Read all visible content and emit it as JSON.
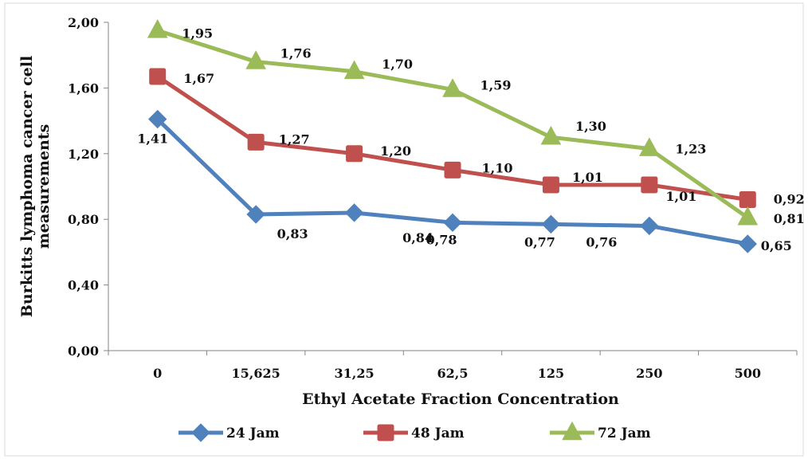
{
  "chart_data": {
    "type": "line",
    "xlabel": "Ethyl Acetate Fraction Concentration",
    "ylabel": [
      "Burkitts lymphoma cancer cell",
      "measurements"
    ],
    "categories": [
      "0",
      "15,625",
      "31,25",
      "62,5",
      "125",
      "250",
      "500"
    ],
    "ylim": [
      0,
      2
    ],
    "yticks": [
      0,
      0.4,
      0.8,
      1.2,
      1.6,
      2.0
    ],
    "ytick_labels": [
      "0,00",
      "0,40",
      "0,80",
      "1,20",
      "1,60",
      "2,00"
    ],
    "grid": false,
    "legend": "bottom",
    "series": [
      {
        "name": "24 Jam",
        "color": "#4f81bd",
        "marker": "diamond",
        "values": [
          1.41,
          0.83,
          0.84,
          0.78,
          0.77,
          0.76,
          0.65
        ],
        "labels": [
          "1,41",
          "0,83",
          "0,84",
          "0,78",
          "0,77",
          "0,76",
          "0,65"
        ]
      },
      {
        "name": "48 Jam",
        "color": "#c0504d",
        "marker": "square",
        "values": [
          1.67,
          1.27,
          1.2,
          1.1,
          1.01,
          1.01,
          0.92
        ],
        "labels": [
          "1,67",
          "1,27",
          "1,20",
          "1,10",
          "1,01",
          "1,01",
          "0,92"
        ]
      },
      {
        "name": "72 Jam",
        "color": "#9bbb59",
        "marker": "triangle",
        "values": [
          1.95,
          1.76,
          1.7,
          1.59,
          1.3,
          1.23,
          0.81
        ],
        "labels": [
          "1,95",
          "1,76",
          "1,70",
          "1,59",
          "1,30",
          "1,23",
          "0,81"
        ]
      }
    ]
  }
}
